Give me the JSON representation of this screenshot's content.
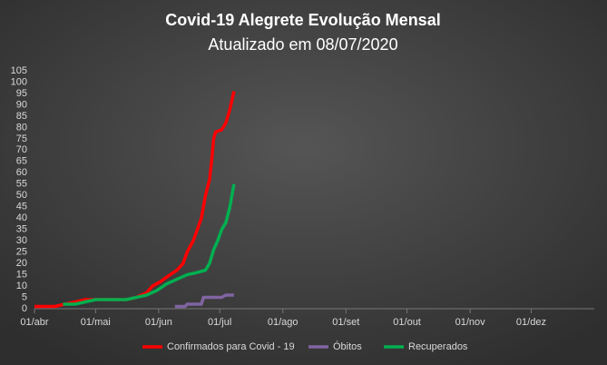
{
  "chart_data": {
    "type": "line",
    "title": "Covid-19  Alegrete  Evolução  Mensal",
    "subtitle": "Atualizado  em 08/07/2020",
    "xlim": [
      0,
      275
    ],
    "xticks": [
      {
        "value": 0,
        "label": "01/abr"
      },
      {
        "value": 30,
        "label": "01/mai"
      },
      {
        "value": 61,
        "label": "01/jun"
      },
      {
        "value": 91,
        "label": "01/jul"
      },
      {
        "value": 122,
        "label": "01/ago"
      },
      {
        "value": 153,
        "label": "01/set"
      },
      {
        "value": 183,
        "label": "01/out"
      },
      {
        "value": 214,
        "label": "01/nov"
      },
      {
        "value": 244,
        "label": "01/dez"
      }
    ],
    "ylim": [
      0,
      105
    ],
    "yticks": [
      0,
      5,
      10,
      15,
      20,
      25,
      30,
      35,
      40,
      45,
      50,
      55,
      60,
      65,
      70,
      75,
      80,
      85,
      90,
      95,
      100,
      105
    ],
    "series": [
      {
        "name": "Confirmados para Covid - 19",
        "color": "#ff0000",
        "x": [
          0,
          10,
          15,
          20,
          25,
          30,
          40,
          45,
          50,
          55,
          58,
          62,
          65,
          70,
          73,
          75,
          78,
          80,
          82,
          84,
          86,
          87,
          88,
          89,
          92,
          94,
          96,
          98
        ],
        "values": [
          1,
          1,
          2,
          3,
          4,
          4,
          4,
          4,
          5,
          7,
          10,
          12,
          14,
          17,
          20,
          25,
          30,
          35,
          40,
          50,
          57,
          65,
          75,
          78,
          79,
          82,
          88,
          96
        ]
      },
      {
        "name": "Óbitos",
        "color": "#8064a2",
        "x": [
          69,
          74,
          75,
          82,
          83,
          92,
          94,
          98
        ],
        "values": [
          1,
          1,
          2,
          2,
          5,
          5,
          6,
          6
        ]
      },
      {
        "name": "Recuperados",
        "color": "#00b050",
        "x": [
          14,
          20,
          25,
          30,
          45,
          50,
          55,
          60,
          65,
          70,
          75,
          80,
          84,
          86,
          88,
          90,
          92,
          94,
          96,
          98
        ],
        "values": [
          2,
          2,
          3,
          4,
          4,
          5,
          6,
          8,
          11,
          13,
          15,
          16,
          17,
          20,
          26,
          30,
          35,
          38,
          45,
          55
        ]
      }
    ]
  }
}
